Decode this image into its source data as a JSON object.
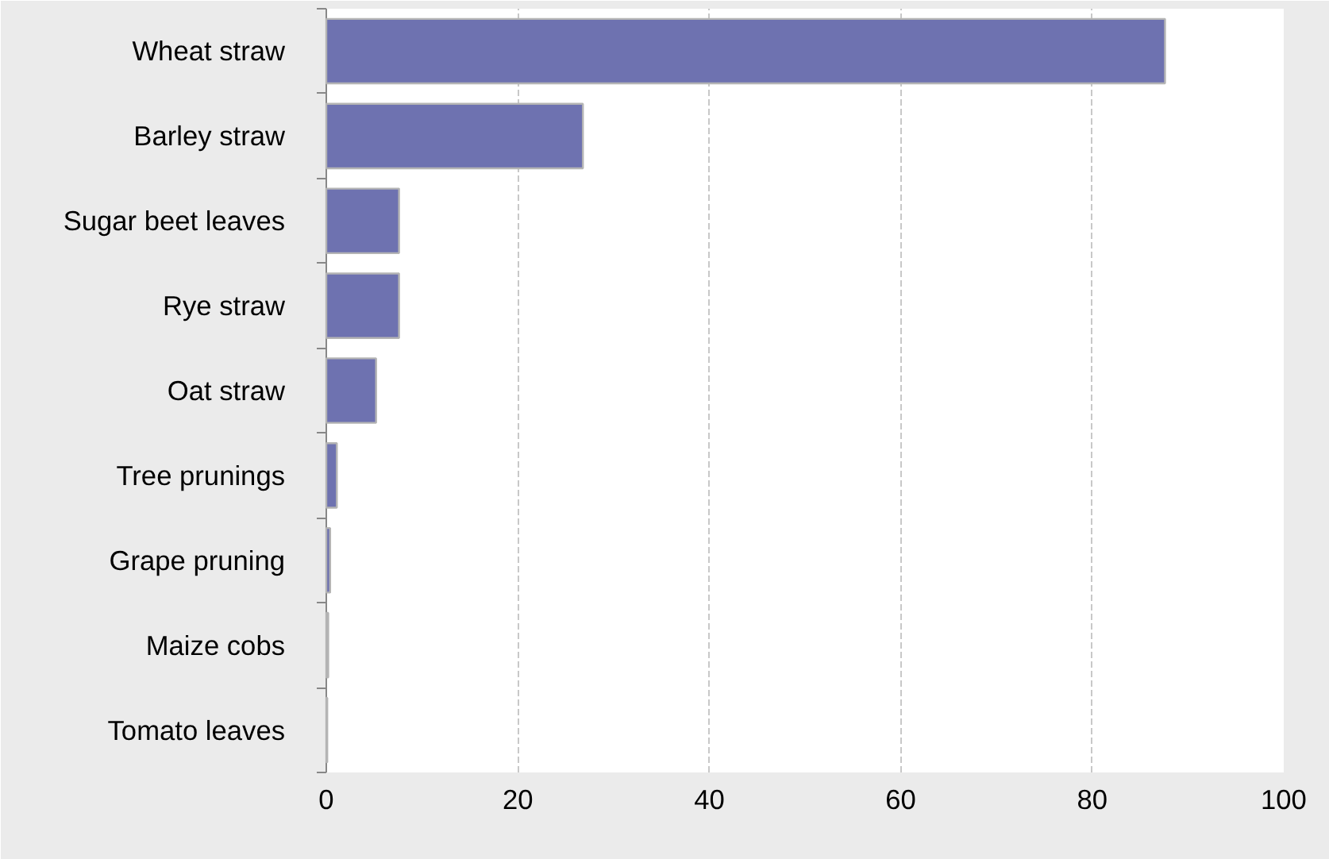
{
  "chart_data": {
    "type": "bar",
    "orientation": "horizontal",
    "categories": [
      "Wheat straw",
      "Barley straw",
      "Sugar beet leaves",
      "Rye straw",
      "Oat straw",
      "Tree prunings",
      "Grape pruning",
      "Maize cobs",
      "Tomato leaves"
    ],
    "values": [
      87.6,
      26.8,
      7.6,
      7.6,
      5.2,
      1.1,
      0.4,
      0.2,
      0.1
    ],
    "color": "#6e72b0",
    "xlim": [
      0,
      100
    ],
    "xticks": [
      0,
      20,
      40,
      60,
      80,
      100
    ],
    "grid": "x"
  }
}
